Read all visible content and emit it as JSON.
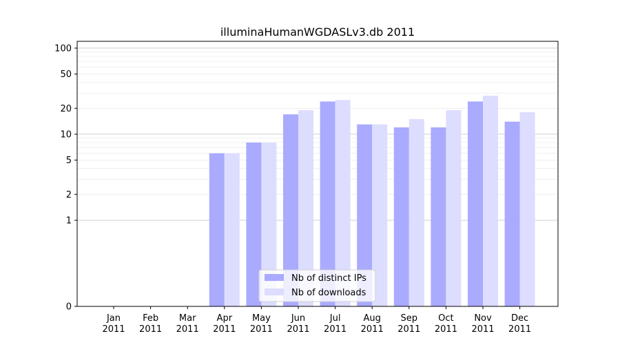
{
  "chart_data": {
    "type": "bar",
    "title": "illuminaHumanWGDASLv3.db 2011",
    "xlabel": "",
    "ylabel": "",
    "y_scale": "symlog",
    "ylim": [
      0,
      120
    ],
    "yticks": [
      {
        "value": 0,
        "label": "0"
      },
      {
        "value": 1,
        "label": "1"
      },
      {
        "value": 2,
        "label": "2"
      },
      {
        "value": 5,
        "label": "5"
      },
      {
        "value": 10,
        "label": "10"
      },
      {
        "value": 20,
        "label": "20"
      },
      {
        "value": 50,
        "label": "50"
      },
      {
        "value": 100,
        "label": "100"
      }
    ],
    "categories": [
      {
        "month": "Jan",
        "year": "2011"
      },
      {
        "month": "Feb",
        "year": "2011"
      },
      {
        "month": "Mar",
        "year": "2011"
      },
      {
        "month": "Apr",
        "year": "2011"
      },
      {
        "month": "May",
        "year": "2011"
      },
      {
        "month": "Jun",
        "year": "2011"
      },
      {
        "month": "Jul",
        "year": "2011"
      },
      {
        "month": "Aug",
        "year": "2011"
      },
      {
        "month": "Sep",
        "year": "2011"
      },
      {
        "month": "Oct",
        "year": "2011"
      },
      {
        "month": "Nov",
        "year": "2011"
      },
      {
        "month": "Dec",
        "year": "2011"
      }
    ],
    "series": [
      {
        "name": "Nb of distinct IPs",
        "color": "#aaaaff",
        "values": [
          0,
          0,
          0,
          6,
          8,
          17,
          24,
          13,
          12,
          12,
          24,
          14
        ]
      },
      {
        "name": "Nb of downloads",
        "color": "#ddddff",
        "values": [
          0,
          0,
          0,
          6,
          8,
          19,
          25,
          13,
          15,
          19,
          28,
          18
        ]
      }
    ],
    "legend": {
      "position": "lower-center"
    },
    "grid": {
      "y": true,
      "x": false
    }
  }
}
